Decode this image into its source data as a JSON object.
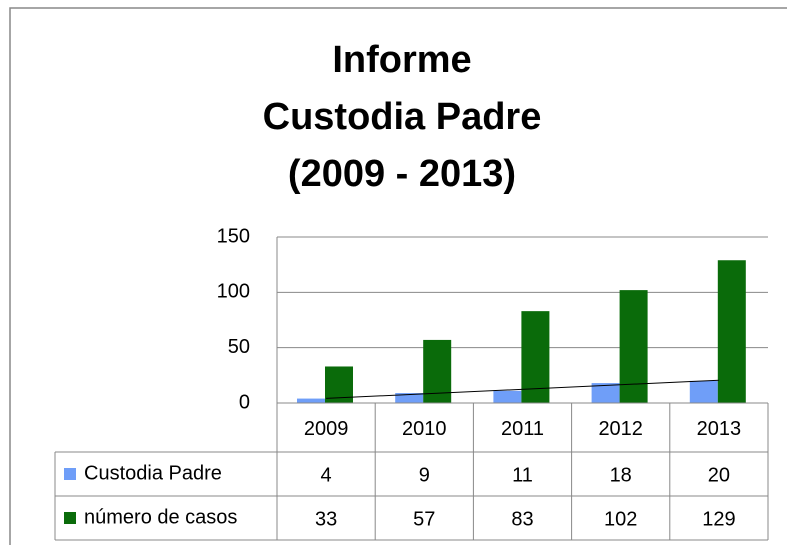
{
  "chart_data": {
    "type": "bar",
    "title": [
      "Informe",
      "Custodia  Padre",
      "(2009 - 2013)"
    ],
    "categories": [
      "2009",
      "2010",
      "2011",
      "2012",
      "2013"
    ],
    "series": [
      {
        "name": "Custodia Padre",
        "color": "#6f9ef8",
        "values": [
          4,
          9,
          11,
          18,
          20
        ],
        "trendline": "linear"
      },
      {
        "name": "número de casos",
        "color": "#0a6b0a",
        "values": [
          33,
          57,
          83,
          102,
          129
        ]
      }
    ],
    "ylim": [
      0,
      150
    ],
    "yticks": [
      0,
      50,
      100,
      150
    ],
    "grid": true,
    "data_table": true
  }
}
